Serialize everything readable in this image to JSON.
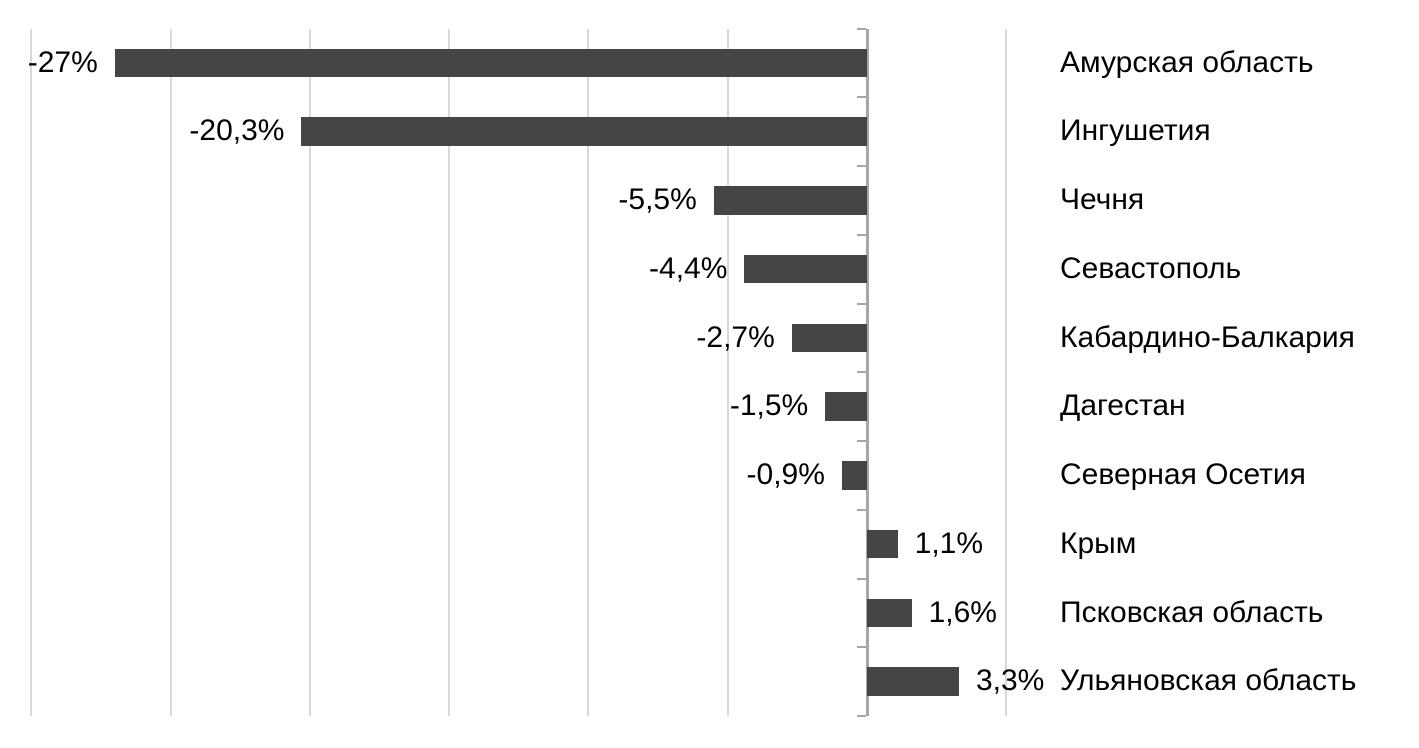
{
  "chart_data": {
    "type": "bar",
    "orientation": "horizontal",
    "categories": [
      "Амурская область",
      "Ингушетия",
      "Чечня",
      "Севастополь",
      "Кабардино-Балкария",
      "Дагестан",
      "Северная Осетия",
      "Крым",
      "Псковская область",
      "Ульяновская область"
    ],
    "values": [
      -27,
      -20.3,
      -5.5,
      -4.4,
      -2.7,
      -1.5,
      -0.9,
      1.1,
      1.6,
      3.3
    ],
    "value_labels": [
      "-27%",
      "-20,3%",
      "-5,5%",
      "-4,4%",
      "-2,7%",
      "-1,5%",
      "-0,9%",
      "1,1%",
      "1,6%",
      "3,3%"
    ],
    "title": "",
    "xlabel": "",
    "ylabel": "",
    "xlim": [
      -30,
      5
    ],
    "gridline_values": [
      -30,
      -25,
      -20,
      -15,
      -10,
      -5,
      5
    ],
    "zero_axis_value": 0,
    "grid": true,
    "legend": false,
    "value_label_position": "outside-end",
    "category_label_position": "right-of-plot"
  },
  "colors": {
    "bar": "#454545",
    "gridline": "#d9d9d9",
    "axis_line": "#a6a6a6",
    "tick": "#a6a6a6",
    "text": "#000000",
    "background": "#ffffff"
  }
}
